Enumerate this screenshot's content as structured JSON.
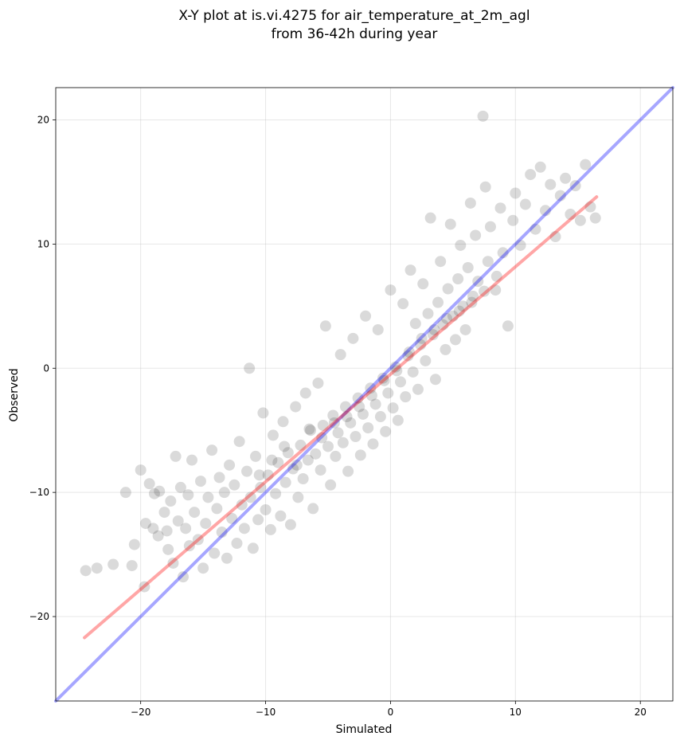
{
  "chart_data": {
    "type": "scatter",
    "title_line1": "X-Y plot at is.vi.4275 for air_temperature_at_2m_agl",
    "title_line2": "from 36-42h during year",
    "xlabel": "Simulated",
    "ylabel": "Observed",
    "xlim": [
      -26.8,
      22.6
    ],
    "ylim": [
      -26.8,
      22.6
    ],
    "xticks": [
      -20,
      -10,
      0,
      10,
      20
    ],
    "yticks": [
      -20,
      -10,
      0,
      10,
      20
    ],
    "xtick_labels": [
      "−20",
      "−10",
      "0",
      "10",
      "20"
    ],
    "ytick_labels": [
      "−20",
      "−10",
      "0",
      "10",
      "20"
    ],
    "grid": true,
    "point_color": "#000000",
    "point_alpha": 0.06,
    "identity_line": {
      "color": "#0000ff",
      "alpha": 0.35,
      "from": [
        -26.8,
        -26.8
      ],
      "to": [
        22.6,
        22.6
      ]
    },
    "fit_line": {
      "color": "#ff0000",
      "alpha": 0.35,
      "from": [
        -24.5,
        -21.7
      ],
      "to": [
        16.5,
        13.8
      ]
    },
    "points": [
      [
        -24.4,
        -16.3
      ],
      [
        -23.5,
        -16.1
      ],
      [
        -22.2,
        -15.8
      ],
      [
        -21.2,
        -10.0
      ],
      [
        -20.7,
        -15.9
      ],
      [
        -20.5,
        -14.2
      ],
      [
        -20.0,
        -8.2
      ],
      [
        -19.7,
        -17.6
      ],
      [
        -19.6,
        -12.5
      ],
      [
        -19.3,
        -9.3
      ],
      [
        -19.0,
        -12.9
      ],
      [
        -18.9,
        -10.1
      ],
      [
        -18.6,
        -13.5
      ],
      [
        -18.5,
        -9.9
      ],
      [
        -18.1,
        -11.6
      ],
      [
        -17.9,
        -13.1
      ],
      [
        -17.8,
        -14.6
      ],
      [
        -17.6,
        -10.7
      ],
      [
        -17.4,
        -15.7
      ],
      [
        -17.2,
        -7.1
      ],
      [
        -17.0,
        -12.3
      ],
      [
        -16.8,
        -9.6
      ],
      [
        -16.6,
        -16.8
      ],
      [
        -16.4,
        -12.9
      ],
      [
        -16.2,
        -10.2
      ],
      [
        -16.1,
        -14.3
      ],
      [
        -15.9,
        -7.4
      ],
      [
        -15.7,
        -11.6
      ],
      [
        -15.4,
        -13.8
      ],
      [
        -15.2,
        -9.1
      ],
      [
        -15.0,
        -16.1
      ],
      [
        -14.8,
        -12.5
      ],
      [
        -14.6,
        -10.4
      ],
      [
        -14.3,
        -6.6
      ],
      [
        -14.1,
        -14.9
      ],
      [
        -13.9,
        -11.3
      ],
      [
        -13.7,
        -8.8
      ],
      [
        -13.5,
        -13.2
      ],
      [
        -13.3,
        -10.0
      ],
      [
        -13.1,
        -15.3
      ],
      [
        -12.9,
        -7.8
      ],
      [
        -12.7,
        -12.1
      ],
      [
        -12.5,
        -9.4
      ],
      [
        -12.3,
        -14.1
      ],
      [
        -12.1,
        -5.9
      ],
      [
        -11.9,
        -11.0
      ],
      [
        -11.7,
        -12.9
      ],
      [
        -11.5,
        -8.3
      ],
      [
        -11.3,
        0.0
      ],
      [
        -11.2,
        -10.4
      ],
      [
        -11.0,
        -14.5
      ],
      [
        -10.8,
        -7.1
      ],
      [
        -10.6,
        -12.2
      ],
      [
        -10.4,
        -9.6
      ],
      [
        -10.2,
        -3.6
      ],
      [
        -10.0,
        -11.4
      ],
      [
        -9.8,
        -8.6
      ],
      [
        -9.6,
        -13.0
      ],
      [
        -9.4,
        -5.4
      ],
      [
        -9.2,
        -10.1
      ],
      [
        -9.0,
        -7.6
      ],
      [
        -8.8,
        -11.9
      ],
      [
        -8.6,
        -4.3
      ],
      [
        -8.4,
        -9.2
      ],
      [
        -8.2,
        -6.8
      ],
      [
        -8.0,
        -12.6
      ],
      [
        -7.8,
        -8.1
      ],
      [
        -7.6,
        -3.1
      ],
      [
        -7.4,
        -10.4
      ],
      [
        -7.2,
        -6.2
      ],
      [
        -7.0,
        -8.9
      ],
      [
        -6.8,
        -2.0
      ],
      [
        -6.6,
        -7.4
      ],
      [
        -6.4,
        -5.0
      ],
      [
        -6.2,
        -11.3
      ],
      [
        -6.0,
        -6.9
      ],
      [
        -5.8,
        -1.2
      ],
      [
        -5.6,
        -8.2
      ],
      [
        -5.4,
        -4.6
      ],
      [
        -5.2,
        3.4
      ],
      [
        -5.0,
        -6.3
      ],
      [
        -4.8,
        -9.4
      ],
      [
        -4.6,
        -3.8
      ],
      [
        -4.4,
        -7.1
      ],
      [
        -4.2,
        -5.2
      ],
      [
        -4.0,
        1.1
      ],
      [
        -3.8,
        -6.0
      ],
      [
        -3.6,
        -3.1
      ],
      [
        -3.4,
        -8.3
      ],
      [
        -3.2,
        -4.4
      ],
      [
        -3.0,
        2.4
      ],
      [
        -2.8,
        -5.5
      ],
      [
        -2.6,
        -2.4
      ],
      [
        -2.4,
        -7.0
      ],
      [
        -2.2,
        -3.7
      ],
      [
        -2.0,
        4.2
      ],
      [
        -1.8,
        -4.8
      ],
      [
        -1.6,
        -1.6
      ],
      [
        -1.4,
        -6.1
      ],
      [
        -1.2,
        -2.9
      ],
      [
        -1.0,
        3.1
      ],
      [
        -0.8,
        -3.9
      ],
      [
        -0.6,
        -0.8
      ],
      [
        -0.4,
        -5.1
      ],
      [
        -0.2,
        -2.0
      ],
      [
        0.0,
        6.3
      ],
      [
        0.2,
        -3.2
      ],
      [
        0.4,
        0.1
      ],
      [
        0.6,
        -4.2
      ],
      [
        0.8,
        -1.1
      ],
      [
        1.0,
        5.2
      ],
      [
        1.2,
        -2.3
      ],
      [
        1.4,
        1.0
      ],
      [
        1.6,
        7.9
      ],
      [
        1.8,
        -0.3
      ],
      [
        2.0,
        3.6
      ],
      [
        2.2,
        -1.7
      ],
      [
        2.4,
        1.9
      ],
      [
        2.6,
        6.8
      ],
      [
        2.8,
        0.6
      ],
      [
        3.0,
        4.4
      ],
      [
        3.2,
        12.1
      ],
      [
        3.4,
        2.7
      ],
      [
        3.6,
        -0.9
      ],
      [
        3.8,
        5.3
      ],
      [
        4.0,
        8.6
      ],
      [
        4.2,
        3.5
      ],
      [
        4.4,
        1.5
      ],
      [
        4.6,
        6.4
      ],
      [
        4.8,
        11.6
      ],
      [
        5.0,
        4.2
      ],
      [
        5.2,
        2.3
      ],
      [
        5.4,
        7.2
      ],
      [
        5.6,
        9.9
      ],
      [
        5.8,
        5.0
      ],
      [
        6.0,
        3.1
      ],
      [
        6.2,
        8.1
      ],
      [
        6.4,
        13.3
      ],
      [
        6.6,
        5.8
      ],
      [
        6.8,
        10.7
      ],
      [
        7.0,
        7.0
      ],
      [
        7.4,
        20.3
      ],
      [
        7.6,
        14.6
      ],
      [
        7.8,
        8.6
      ],
      [
        8.0,
        11.4
      ],
      [
        8.4,
        6.3
      ],
      [
        8.8,
        12.9
      ],
      [
        9.0,
        9.3
      ],
      [
        9.4,
        3.4
      ],
      [
        9.8,
        11.9
      ],
      [
        10.0,
        14.1
      ],
      [
        10.4,
        9.9
      ],
      [
        10.8,
        13.2
      ],
      [
        11.2,
        15.6
      ],
      [
        11.6,
        11.2
      ],
      [
        12.0,
        16.2
      ],
      [
        12.4,
        12.7
      ],
      [
        12.8,
        14.8
      ],
      [
        13.2,
        10.6
      ],
      [
        13.6,
        13.9
      ],
      [
        14.0,
        15.3
      ],
      [
        14.4,
        12.4
      ],
      [
        14.8,
        14.7
      ],
      [
        15.2,
        11.9
      ],
      [
        15.6,
        16.4
      ],
      [
        16.0,
        13.0
      ],
      [
        16.4,
        12.1
      ],
      [
        -10.5,
        -8.6
      ],
      [
        -9.5,
        -7.4
      ],
      [
        -8.5,
        -6.3
      ],
      [
        -7.5,
        -7.8
      ],
      [
        -6.5,
        -4.9
      ],
      [
        -5.5,
        -5.6
      ],
      [
        -4.5,
        -4.4
      ],
      [
        -3.5,
        -3.9
      ],
      [
        -2.5,
        -3.1
      ],
      [
        -1.5,
        -2.2
      ],
      [
        -0.5,
        -1.0
      ],
      [
        0.5,
        -0.2
      ],
      [
        1.5,
        1.3
      ],
      [
        2.5,
        2.4
      ],
      [
        3.5,
        3.1
      ],
      [
        4.5,
        4.0
      ],
      [
        5.5,
        4.6
      ],
      [
        6.5,
        5.3
      ],
      [
        7.5,
        6.2
      ],
      [
        8.5,
        7.4
      ]
    ]
  }
}
